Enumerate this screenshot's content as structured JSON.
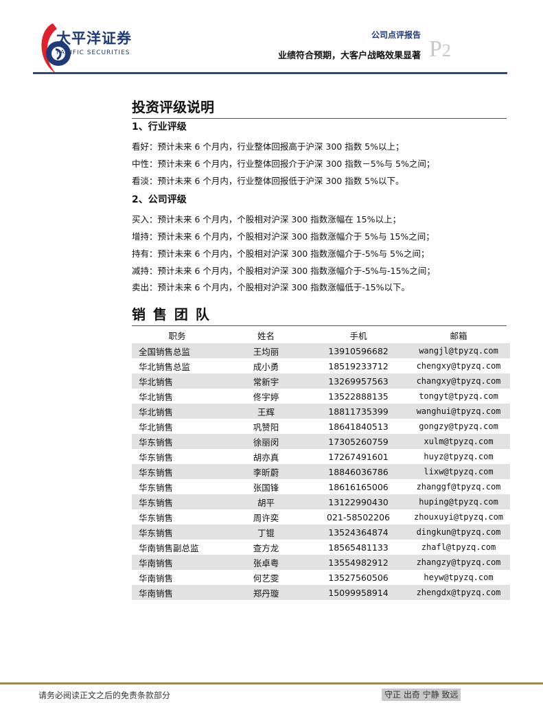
{
  "header": {
    "logo_cn": "太平洋证券",
    "logo_en": "PACIFIC SECURITIES",
    "report_type": "公司点评报告",
    "report_title": "业绩符合预期，大客户战略效果显著",
    "page_prefix": "P",
    "page_number": "2"
  },
  "rating": {
    "title": "投资评级说明",
    "industry": {
      "heading": "1、行业评级",
      "lines": [
        "看好：预计未来 6 个月内，行业整体回报高于沪深 300 指数 5%以上；",
        "中性：预计未来 6 个月内，行业整体回报介于沪深 300 指数－5%与 5%之间；",
        "看淡：预计未来 6 个月内，行业整体回报低于沪深 300 指数 5%以下。"
      ]
    },
    "company": {
      "heading": "2、公司评级",
      "lines": [
        "买入：预计未来 6 个月内，个股相对沪深 300 指数涨幅在 15%以上；",
        "增持：预计未来 6 个月内，个股相对沪深 300 指数涨幅介于 5%与 15%之间；",
        "持有：预计未来 6 个月内，个股相对沪深 300 指数涨幅介于-5%与 5%之间；",
        "减持：预计未来 6 个月内，个股相对沪深 300 指数涨幅介于-5%与-15%之间；",
        "卖出：预计未来 6 个月内，个股相对沪深 300 指数涨幅低于-15%以下。"
      ]
    }
  },
  "sales": {
    "title": "销 售 团 队",
    "headers": [
      "职务",
      "姓名",
      "手机",
      "邮箱"
    ],
    "rows": [
      [
        "全国销售总监",
        "王均丽",
        "13910596682",
        "wangjl@tpyzq.com"
      ],
      [
        "华北销售总监",
        "成小勇",
        "18519233712",
        "chengxy@tpyzq.com"
      ],
      [
        "华北销售",
        "常新宇",
        "13269957563",
        "changxy@tpyzq.com"
      ],
      [
        "华北销售",
        "佟宇婷",
        "13522888135",
        "tongyt@tpyzq.com"
      ],
      [
        "华北销售",
        "王辉",
        "18811735399",
        "wanghui@tpyzq.com"
      ],
      [
        "华北销售",
        "巩赞阳",
        "18641840513",
        "gongzy@tpyzq.com"
      ],
      [
        "华东销售",
        "徐丽闵",
        "17305260759",
        "xulm@tpyzq.com"
      ],
      [
        "华东销售",
        "胡亦真",
        "17267491601",
        "huyz@tpyzq.com"
      ],
      [
        "华东销售",
        "李昕蔚",
        "18846036786",
        "lixw@tpyzq.com"
      ],
      [
        "华东销售",
        "张国锋",
        "18616165006",
        "zhanggf@tpyzq.com"
      ],
      [
        "华东销售",
        "胡平",
        "13122990430",
        "huping@tpyzq.com"
      ],
      [
        "华东销售",
        "周许奕",
        "021-58502206",
        "zhouxuyi@tpyzq.com"
      ],
      [
        "华东销售",
        "丁锟",
        "13524364874",
        "dingkun@tpyzq.com"
      ],
      [
        "华南销售副总监",
        "查方龙",
        "18565481133",
        "zhafl@tpyzq.com"
      ],
      [
        "华南销售",
        "张卓粤",
        "13554982912",
        "zhangzy@tpyzq.com"
      ],
      [
        "华南销售",
        "何艺雯",
        "13527560506",
        "heyw@tpyzq.com"
      ],
      [
        "华南销售",
        "郑丹璇",
        "15099958914",
        "zhengdx@tpyzq.com"
      ]
    ]
  },
  "footer": {
    "disclaimer": "请务必阅读正文之后的免责条款部分",
    "slogan": "守正 出奇 宁静 致远"
  },
  "colors": {
    "brand_blue": "#1f3a7a",
    "brand_red": "#e0202a",
    "row_gray": "#e2e2e2",
    "footer_line": "#9a8a50"
  }
}
